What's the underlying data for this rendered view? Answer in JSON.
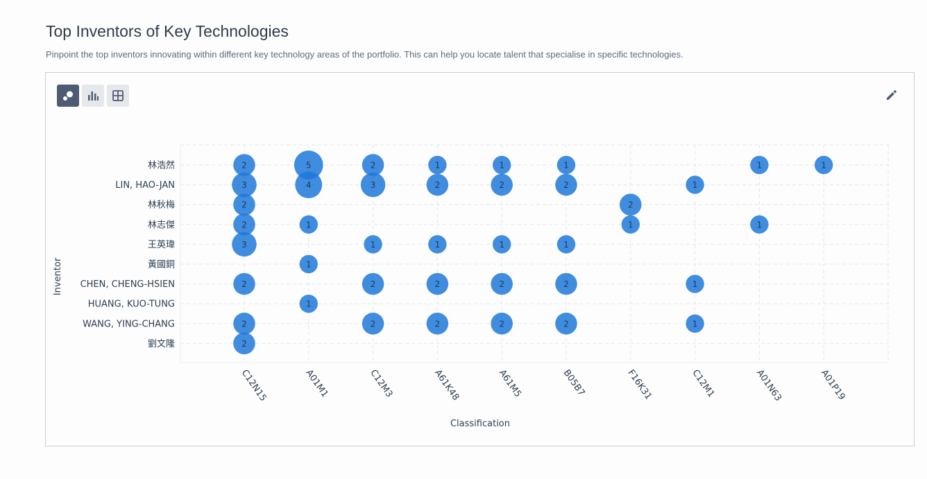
{
  "header": {
    "title": "Top Inventors of Key Technologies",
    "subtitle": "Pinpoint the top inventors innovating within different key technology areas of the portfolio. This can help you locate talent that specialise in specific technologies."
  },
  "toolbar": {
    "buttons": [
      {
        "icon": "bubble-chart-icon",
        "active": true
      },
      {
        "icon": "bar-chart-icon",
        "active": false
      },
      {
        "icon": "table-grid-icon",
        "active": false
      }
    ],
    "edit_icon": "pencil-icon"
  },
  "colors": {
    "bubble": "#1e78d8",
    "bubble_label": "#1f3a5c",
    "grid": "#e4e7ea",
    "axis_text": "#2c3e50"
  },
  "chart_data": {
    "type": "bubble",
    "xlabel": "Classification",
    "ylabel": "Inventor",
    "grid": true,
    "x": [
      "C12N15",
      "A01M1",
      "C12M3",
      "A61K48",
      "A61M5",
      "B05B7",
      "F16K31",
      "C12M1",
      "A01N63",
      "A01P19"
    ],
    "y": [
      "林浩然",
      "LIN, HAO-JAN",
      "林秋梅",
      "林志傑",
      "王英瑋",
      "黃國銅",
      "CHEN, CHENG-HSIEN",
      "HUANG, KUO-TUNG",
      "WANG, YING-CHANG",
      "劉文隆"
    ],
    "points": [
      {
        "x": "C12N15",
        "y": "林浩然",
        "value": 2
      },
      {
        "x": "A01M1",
        "y": "林浩然",
        "value": 5
      },
      {
        "x": "C12M3",
        "y": "林浩然",
        "value": 2
      },
      {
        "x": "A61K48",
        "y": "林浩然",
        "value": 1
      },
      {
        "x": "A61M5",
        "y": "林浩然",
        "value": 1
      },
      {
        "x": "B05B7",
        "y": "林浩然",
        "value": 1
      },
      {
        "x": "A01N63",
        "y": "林浩然",
        "value": 1
      },
      {
        "x": "A01P19",
        "y": "林浩然",
        "value": 1
      },
      {
        "x": "C12N15",
        "y": "LIN, HAO-JAN",
        "value": 3
      },
      {
        "x": "A01M1",
        "y": "LIN, HAO-JAN",
        "value": 4
      },
      {
        "x": "C12M3",
        "y": "LIN, HAO-JAN",
        "value": 3
      },
      {
        "x": "A61K48",
        "y": "LIN, HAO-JAN",
        "value": 2
      },
      {
        "x": "A61M5",
        "y": "LIN, HAO-JAN",
        "value": 2
      },
      {
        "x": "B05B7",
        "y": "LIN, HAO-JAN",
        "value": 2
      },
      {
        "x": "C12M1",
        "y": "LIN, HAO-JAN",
        "value": 1
      },
      {
        "x": "C12N15",
        "y": "林秋梅",
        "value": 2
      },
      {
        "x": "F16K31",
        "y": "林秋梅",
        "value": 2
      },
      {
        "x": "C12N15",
        "y": "林志傑",
        "value": 2
      },
      {
        "x": "A01M1",
        "y": "林志傑",
        "value": 1
      },
      {
        "x": "F16K31",
        "y": "林志傑",
        "value": 1
      },
      {
        "x": "A01N63",
        "y": "林志傑",
        "value": 1
      },
      {
        "x": "C12N15",
        "y": "王英瑋",
        "value": 3
      },
      {
        "x": "C12M3",
        "y": "王英瑋",
        "value": 1
      },
      {
        "x": "A61K48",
        "y": "王英瑋",
        "value": 1
      },
      {
        "x": "A61M5",
        "y": "王英瑋",
        "value": 1
      },
      {
        "x": "B05B7",
        "y": "王英瑋",
        "value": 1
      },
      {
        "x": "A01M1",
        "y": "黃國銅",
        "value": 1
      },
      {
        "x": "C12N15",
        "y": "CHEN, CHENG-HSIEN",
        "value": 2
      },
      {
        "x": "C12M3",
        "y": "CHEN, CHENG-HSIEN",
        "value": 2
      },
      {
        "x": "A61K48",
        "y": "CHEN, CHENG-HSIEN",
        "value": 2
      },
      {
        "x": "A61M5",
        "y": "CHEN, CHENG-HSIEN",
        "value": 2
      },
      {
        "x": "B05B7",
        "y": "CHEN, CHENG-HSIEN",
        "value": 2
      },
      {
        "x": "C12M1",
        "y": "CHEN, CHENG-HSIEN",
        "value": 1
      },
      {
        "x": "A01M1",
        "y": "HUANG, KUO-TUNG",
        "value": 1
      },
      {
        "x": "C12N15",
        "y": "WANG, YING-CHANG",
        "value": 2
      },
      {
        "x": "C12M3",
        "y": "WANG, YING-CHANG",
        "value": 2
      },
      {
        "x": "A61K48",
        "y": "WANG, YING-CHANG",
        "value": 2
      },
      {
        "x": "A61M5",
        "y": "WANG, YING-CHANG",
        "value": 2
      },
      {
        "x": "B05B7",
        "y": "WANG, YING-CHANG",
        "value": 2
      },
      {
        "x": "C12M1",
        "y": "WANG, YING-CHANG",
        "value": 1
      },
      {
        "x": "C12N15",
        "y": "劉文隆",
        "value": 2
      }
    ]
  }
}
